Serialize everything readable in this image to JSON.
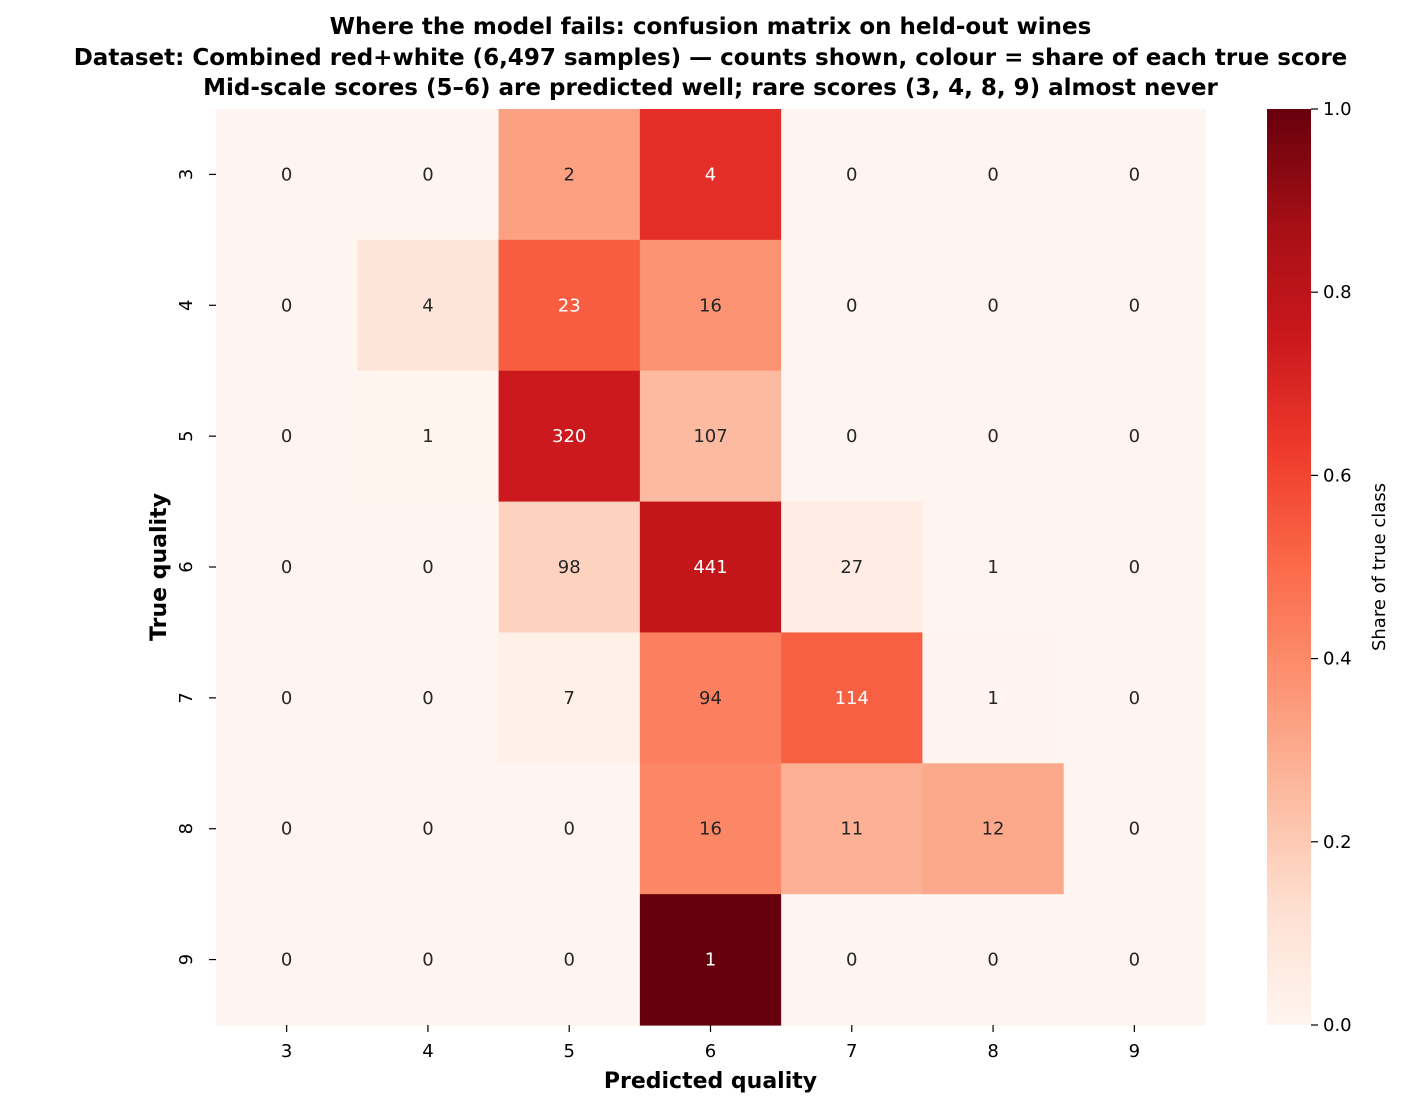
{
  "chart_data": {
    "type": "heatmap",
    "title": "Where the model fails: confusion matrix on held-out wines",
    "subtitle": "Dataset: Combined red+white (6,497 samples) — counts shown, colour = share of each true score",
    "annotation": "Mid-scale scores (5–6) are predicted well; rare scores (3, 4, 8, 9) almost never",
    "xlabel": "Predicted quality",
    "ylabel": "True quality",
    "x_categories": [
      "3",
      "4",
      "5",
      "6",
      "7",
      "8",
      "9"
    ],
    "y_categories": [
      "3",
      "4",
      "5",
      "6",
      "7",
      "8",
      "9"
    ],
    "counts": [
      [
        0,
        0,
        2,
        4,
        0,
        0,
        0
      ],
      [
        0,
        4,
        23,
        16,
        0,
        0,
        0
      ],
      [
        0,
        1,
        320,
        107,
        0,
        0,
        0
      ],
      [
        0,
        0,
        98,
        441,
        27,
        1,
        0
      ],
      [
        0,
        0,
        7,
        94,
        114,
        1,
        0
      ],
      [
        0,
        0,
        0,
        16,
        11,
        12,
        0
      ],
      [
        0,
        0,
        0,
        1,
        0,
        0,
        0
      ]
    ],
    "color_value": "share of true class (row-normalised)",
    "colormap": "Reds",
    "colorbar": {
      "label": "Share of true class",
      "range": [
        0,
        1
      ],
      "ticks": [
        "0.0",
        "0.2",
        "0.4",
        "0.6",
        "0.8",
        "1.0"
      ]
    }
  }
}
